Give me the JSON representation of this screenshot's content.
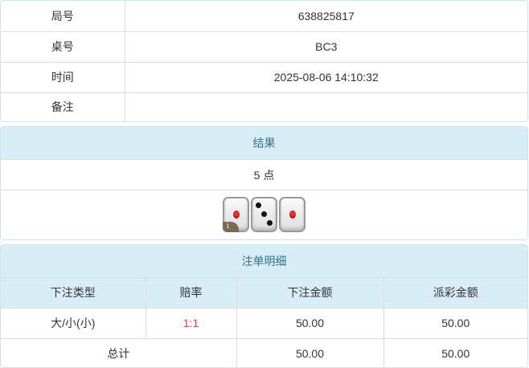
{
  "info": [
    {
      "label": "局号",
      "value": "638825817"
    },
    {
      "label": "桌号",
      "value": "BC3"
    },
    {
      "label": "时间",
      "value": "2025-08-06 14:10:32"
    },
    {
      "label": "备注",
      "value": ""
    }
  ],
  "result": {
    "title": "结果",
    "points": "5 点",
    "dice": [
      1,
      3,
      1
    ]
  },
  "bets": {
    "title": "注单明细",
    "headers": [
      "下注类型",
      "赔率",
      "下注金额",
      "派彩金额"
    ],
    "rows": [
      {
        "type": "大/小(小)",
        "odds": "1:1",
        "amount": "50.00",
        "payout": "50.00"
      }
    ],
    "total": {
      "label": "总计",
      "amount": "50.00",
      "payout": "50.00"
    }
  },
  "colors": {
    "header_bg": "#d9edf7",
    "header_text": "#31708f",
    "odds": "#e4393c"
  }
}
